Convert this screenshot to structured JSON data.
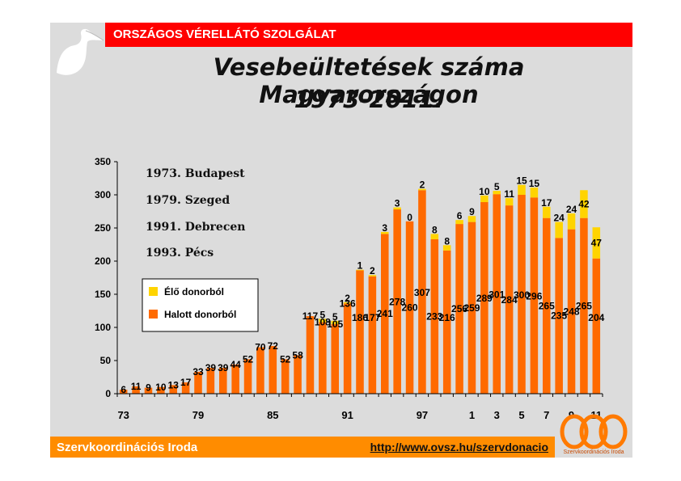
{
  "header": {
    "org": "ORSZÁGOS VÉRELLÁTÓ SZOLGÁLAT"
  },
  "title": {
    "line1": "Vesebeültetések száma Magyarországon",
    "line2": "1973-2011."
  },
  "notes": [
    "1973. Budapest",
    "1979. Szeged",
    "1991. Debrecen",
    "1993. Pécs"
  ],
  "footer": {
    "left": "Szervkoordinációs Iroda",
    "url": "http://www.ovsz.hu/szervdonacio",
    "logo_text": "Szervkoordinációs Iroda"
  },
  "colors": {
    "deceased": "#ff6a00",
    "living": "#ffd400",
    "top_bar": "#ff0000",
    "bottom_bar": "#ff8c00"
  },
  "chart_data": {
    "type": "bar",
    "stacked": true,
    "x": [
      1973,
      1974,
      1975,
      1976,
      1977,
      1978,
      1979,
      1980,
      1981,
      1982,
      1983,
      1984,
      1985,
      1986,
      1987,
      1988,
      1989,
      1990,
      1991,
      1992,
      1993,
      1994,
      1995,
      1996,
      1997,
      1998,
      1999,
      2000,
      2001,
      2002,
      2003,
      2004,
      2005,
      2006,
      2007,
      2008,
      2009,
      2010,
      2011
    ],
    "x_tick_labels": [
      "73",
      "79",
      "85",
      "91",
      "97",
      "1",
      "3",
      "5",
      "7",
      "9",
      "11"
    ],
    "x_tick_years": [
      1973,
      1979,
      1985,
      1991,
      1997,
      2001,
      2003,
      2005,
      2007,
      2009,
      2011
    ],
    "ylim": [
      0,
      350
    ],
    "yticks": [
      0,
      50,
      100,
      150,
      200,
      250,
      300,
      350
    ],
    "series": [
      {
        "name": "Halott donorból",
        "values": [
          6,
          11,
          9,
          10,
          13,
          17,
          33,
          39,
          39,
          44,
          52,
          70,
          72,
          52,
          58,
          117,
          108,
          105,
          136,
          186,
          177,
          241,
          278,
          260,
          307,
          233,
          216,
          256,
          259,
          289,
          301,
          284,
          300,
          296,
          265,
          235,
          248,
          265,
          204
        ],
        "labels": [
          "6",
          "11",
          "9",
          "10",
          "13",
          "17",
          "33",
          "39",
          "39",
          "44",
          "52",
          "70",
          "72",
          "52",
          "58",
          "117",
          "108",
          "105",
          "136",
          "186",
          "177",
          "241",
          "278",
          "260",
          "307",
          "233",
          "216",
          "256",
          "259",
          "289",
          "301",
          "284",
          "300",
          "296",
          "265",
          "235",
          "248",
          "265",
          "204"
        ]
      },
      {
        "name": "Élő donorból",
        "values": [
          0,
          0,
          0,
          0,
          0,
          0,
          0,
          0,
          0,
          0,
          0,
          0,
          0,
          0,
          0,
          0,
          5,
          5,
          2,
          1,
          2,
          3,
          3,
          0,
          2,
          8,
          8,
          6,
          9,
          10,
          5,
          11,
          15,
          15,
          17,
          24,
          24,
          42,
          47
        ],
        "labels": [
          "",
          "",
          "",
          "",
          "",
          "",
          "",
          "",
          "",
          "",
          "",
          "",
          "",
          "",
          "",
          "",
          "5",
          "5",
          "2",
          "1",
          "2",
          "3",
          "3",
          "0",
          "2",
          "8",
          "8",
          "6",
          "9",
          "10",
          "5",
          "11",
          "15",
          "15",
          "17",
          "24",
          "24",
          "42",
          "47"
        ]
      }
    ],
    "legend": {
      "placement": "left",
      "entries": [
        "Élő donorból",
        "Halott donorból"
      ]
    }
  }
}
